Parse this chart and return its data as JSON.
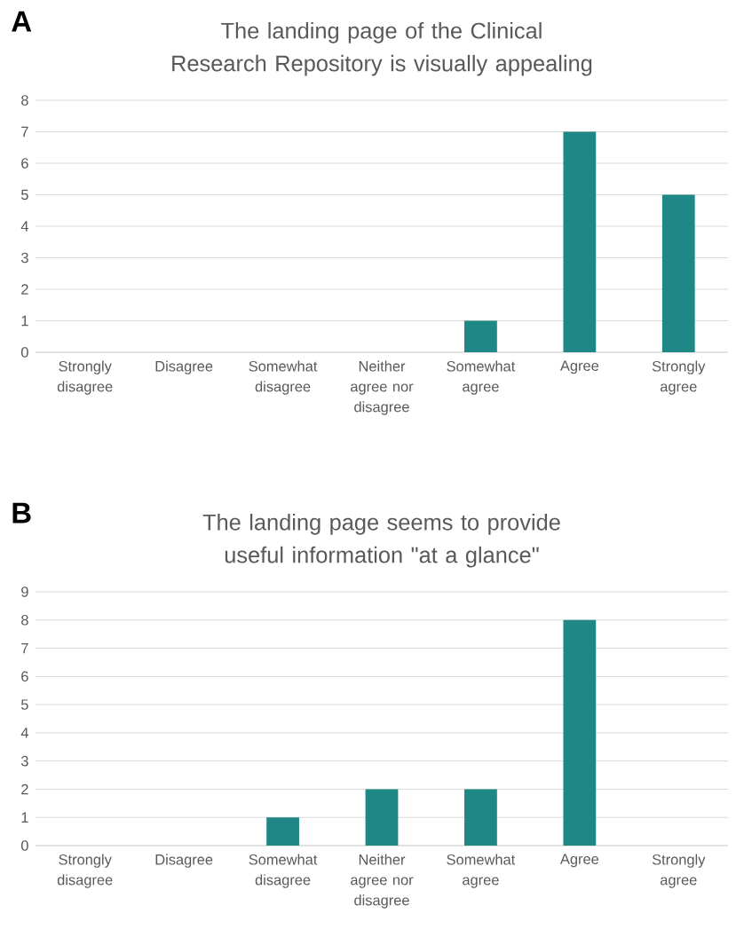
{
  "chart_data": [
    {
      "type": "bar",
      "title": "The landing page of the Clinical Research Repository is visually appealing",
      "annotations": [
        "A"
      ],
      "categories": [
        "Strongly disagree",
        "Disagree",
        "Somewhat disagree",
        "Neither agree nor disagree",
        "Somewhat agree",
        "Agree",
        "Strongly agree"
      ],
      "values": [
        0,
        0,
        0,
        0,
        1,
        7,
        5
      ],
      "color": "#1f8785",
      "ylim": [
        0,
        8
      ],
      "yticks": [
        0,
        1,
        2,
        3,
        4,
        5,
        6,
        7,
        8
      ],
      "grid": "y"
    },
    {
      "type": "bar",
      "title": "The landing page seems to provide useful information \"at a glance\"",
      "annotations": [
        "B"
      ],
      "categories": [
        "Strongly disagree",
        "Disagree",
        "Somewhat disagree",
        "Neither agree nor disagree",
        "Somewhat agree",
        "Agree",
        "Strongly agree"
      ],
      "values": [
        0,
        0,
        1,
        2,
        2,
        8,
        0
      ],
      "color": "#1f8785",
      "ylim": [
        0,
        9
      ],
      "yticks": [
        0,
        1,
        2,
        3,
        4,
        5,
        6,
        7,
        8,
        9
      ],
      "grid": "y"
    }
  ]
}
